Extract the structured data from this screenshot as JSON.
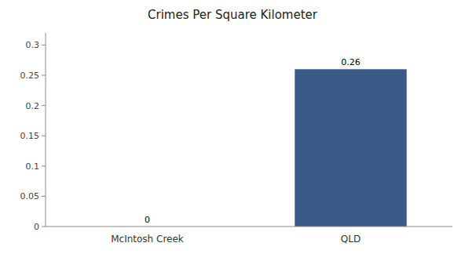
{
  "chart_data": {
    "type": "bar",
    "title": "Crimes Per Square Kilometer",
    "categories": [
      "McIntosh Creek",
      "QLD"
    ],
    "values": [
      0,
      0.26
    ],
    "colors": [
      "#3a5a8a",
      "#3a5a8a"
    ],
    "ylim": [
      0,
      0.32
    ],
    "yticks": [
      0,
      0.05,
      0.1,
      0.15,
      0.2,
      0.25,
      0.3
    ],
    "grid": false,
    "data_labels": true
  }
}
